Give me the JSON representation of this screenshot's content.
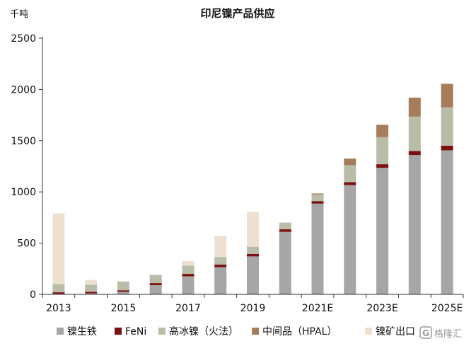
{
  "chart_data": {
    "type": "bar",
    "stacked": true,
    "title": "印尼镍产品供应",
    "ylabel": "千吨",
    "xlabel": "",
    "ylim": [
      0,
      2500
    ],
    "yticks": [
      0,
      500,
      1000,
      1500,
      2000,
      2500
    ],
    "grid": false,
    "legend_position": "bottom",
    "categories": [
      "2013",
      "2014",
      "2015",
      "2016",
      "2017",
      "2018",
      "2019",
      "2020",
      "2021E",
      "2022E",
      "2023E",
      "2024E",
      "2025E"
    ],
    "x_tick_labels": [
      "2013",
      "",
      "2015",
      "",
      "2017",
      "",
      "2019",
      "",
      "2021E",
      "",
      "2023E",
      "",
      "2025E"
    ],
    "series": [
      {
        "name": "镍生铁",
        "color": "#a6a6a6",
        "values": [
          5,
          10,
          25,
          90,
          175,
          265,
          370,
          610,
          885,
          1065,
          1235,
          1360,
          1405
        ]
      },
      {
        "name": "FeNi",
        "color": "#7b1010",
        "values": [
          15,
          15,
          15,
          20,
          25,
          25,
          25,
          25,
          25,
          30,
          35,
          40,
          45
        ]
      },
      {
        "name": "高冰镍（火法）",
        "color": "#b9bda7",
        "values": [
          80,
          70,
          85,
          80,
          80,
          75,
          70,
          65,
          65,
          165,
          265,
          335,
          375
        ]
      },
      {
        "name": "中间品（HPAL）",
        "color": "#a77c5a",
        "values": [
          0,
          0,
          0,
          0,
          0,
          0,
          0,
          0,
          10,
          65,
          120,
          185,
          230
        ]
      },
      {
        "name": "镍矿出口",
        "color": "#ede0d0",
        "values": [
          690,
          45,
          0,
          0,
          45,
          205,
          340,
          0,
          0,
          0,
          0,
          0,
          0
        ]
      }
    ]
  },
  "watermark": {
    "text": "格隆汇",
    "icon": "g-logo-icon"
  }
}
